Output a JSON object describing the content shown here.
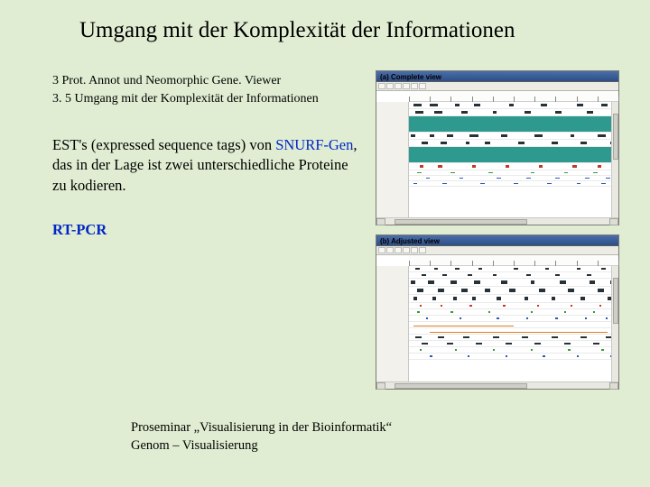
{
  "colors": {
    "slide_bg": "#e0edd2",
    "link_blue": "#0026c7",
    "window_titlebar": "#2d4f88",
    "panel_bg": "#ffffff",
    "panel_border": "#7a7a7a",
    "track_teal": "#2e9a8f",
    "track_dark": "#263238",
    "track_red": "#c03a2a",
    "track_blue": "#2d58b5",
    "track_orange": "#d9831f",
    "track_green": "#3a9b3a",
    "grid": "#eaeaea"
  },
  "title": "Umgang mit der Komplexität der Informationen",
  "meta": {
    "line1": "3 Prot. Annot und Neomorphic Gene. Viewer",
    "line2": "3. 5 Umgang mit der Komplexität der Informationen"
  },
  "body": {
    "line1": " EST's (expressed sequence tags) von ",
    "snurf": "SNURF-Gen",
    "line2_rest": ", das in der Lage ist zwei unterschiedliche Proteine zu kodieren.",
    "rtpcr": "RT-PCR"
  },
  "footer": {
    "line1": "Proseminar „Visualisierung in der Bioinformatik“",
    "line2": "Genom – Visualisierung"
  },
  "figure": {
    "panel_a_label": "(a) Complete view",
    "panel_b_label": "(b) Adjusted view",
    "ruler": {
      "start": 0,
      "end": 100,
      "tick_step": 10
    },
    "panel_a": {
      "tracks": [
        {
          "h": 8,
          "color": "#263238",
          "segments": [
            [
              2,
              6
            ],
            [
              10,
              14
            ],
            [
              22,
              24
            ],
            [
              31,
              34
            ],
            [
              48,
              50
            ],
            [
              63,
              66
            ],
            [
              80,
              83
            ],
            [
              92,
              95
            ]
          ]
        },
        {
          "h": 8,
          "color": "#263238",
          "segments": [
            [
              3,
              7
            ],
            [
              12,
              16
            ],
            [
              25,
              28
            ],
            [
              40,
              42
            ],
            [
              55,
              58
            ],
            [
              70,
              73
            ],
            [
              85,
              88
            ]
          ]
        },
        {
          "h": 18,
          "color": "#2e9a8f",
          "segments": [
            [
              0,
              100
            ]
          ],
          "full": true
        },
        {
          "h": 8,
          "color": "#263238",
          "segments": [
            [
              1,
              3
            ],
            [
              10,
              12
            ],
            [
              18,
              21
            ],
            [
              29,
              33
            ],
            [
              44,
              47
            ],
            [
              60,
              64
            ],
            [
              77,
              79
            ],
            [
              90,
              94
            ]
          ]
        },
        {
          "h": 8,
          "color": "#263238",
          "segments": [
            [
              6,
              9
            ],
            [
              15,
              18
            ],
            [
              27,
              29
            ],
            [
              36,
              39
            ],
            [
              52,
              55
            ],
            [
              68,
              71
            ],
            [
              82,
              85
            ],
            [
              96,
              99
            ]
          ]
        },
        {
          "h": 18,
          "color": "#2e9a8f",
          "segments": [
            [
              0,
              100
            ]
          ],
          "full": true
        },
        {
          "h": 8,
          "color": "#c03a2a",
          "segments": [
            [
              5,
              7
            ],
            [
              14,
              16
            ],
            [
              30,
              32
            ],
            [
              46,
              48
            ],
            [
              62,
              64
            ],
            [
              78,
              80
            ],
            [
              90,
              92
            ]
          ]
        },
        {
          "h": 6,
          "color": "#3a9b3a",
          "segments": [
            [
              4,
              6
            ],
            [
              20,
              22
            ],
            [
              38,
              40
            ],
            [
              58,
              60
            ],
            [
              74,
              76
            ],
            [
              88,
              90
            ]
          ]
        },
        {
          "h": 6,
          "color": "#2d58b5",
          "segments": [
            [
              8,
              10
            ],
            [
              24,
              26
            ],
            [
              42,
              44
            ],
            [
              56,
              58
            ],
            [
              70,
              72
            ],
            [
              84,
              86
            ],
            [
              94,
              96
            ]
          ]
        },
        {
          "h": 6,
          "color": "#2d58b5",
          "segments": [
            [
              2,
              4
            ],
            [
              16,
              18
            ],
            [
              34,
              36
            ],
            [
              50,
              52
            ],
            [
              66,
              68
            ],
            [
              80,
              82
            ],
            [
              92,
              94
            ]
          ]
        }
      ]
    },
    "panel_b": {
      "tracks": [
        {
          "h": 7,
          "color": "#263238",
          "segments": [
            [
              3,
              5
            ],
            [
              12,
              14
            ],
            [
              22,
              24
            ],
            [
              33,
              35
            ],
            [
              50,
              52
            ],
            [
              65,
              67
            ],
            [
              80,
              82
            ],
            [
              92,
              94
            ]
          ]
        },
        {
          "h": 7,
          "color": "#263238",
          "segments": [
            [
              6,
              8
            ],
            [
              16,
              18
            ],
            [
              28,
              30
            ],
            [
              40,
              42
            ],
            [
              56,
              58
            ],
            [
              70,
              72
            ],
            [
              85,
              87
            ]
          ]
        },
        {
          "h": 9,
          "color": "#263238",
          "segments": [
            [
              1,
              3
            ],
            [
              9,
              12
            ],
            [
              20,
              23
            ],
            [
              31,
              34
            ],
            [
              44,
              47
            ],
            [
              58,
              60
            ],
            [
              72,
              75
            ],
            [
              86,
              89
            ],
            [
              96,
              99
            ]
          ]
        },
        {
          "h": 9,
          "color": "#263238",
          "segments": [
            [
              4,
              7
            ],
            [
              14,
              17
            ],
            [
              25,
              28
            ],
            [
              36,
              39
            ],
            [
              48,
              51
            ],
            [
              62,
              65
            ],
            [
              76,
              79
            ],
            [
              90,
              93
            ]
          ]
        },
        {
          "h": 9,
          "color": "#263238",
          "segments": [
            [
              2,
              4
            ],
            [
              11,
              13
            ],
            [
              21,
              23
            ],
            [
              30,
              32
            ],
            [
              42,
              44
            ],
            [
              55,
              57
            ],
            [
              68,
              70
            ],
            [
              82,
              84
            ],
            [
              95,
              97
            ]
          ]
        },
        {
          "h": 7,
          "color": "#c03a2a",
          "segments": [
            [
              5,
              6
            ],
            [
              15,
              16
            ],
            [
              29,
              30
            ],
            [
              45,
              46
            ],
            [
              61,
              62
            ],
            [
              77,
              78
            ],
            [
              91,
              92
            ]
          ]
        },
        {
          "h": 7,
          "color": "#3a9b3a",
          "segments": [
            [
              4,
              5
            ],
            [
              20,
              21
            ],
            [
              38,
              39
            ],
            [
              58,
              59
            ],
            [
              74,
              75
            ],
            [
              88,
              89
            ]
          ]
        },
        {
          "h": 7,
          "color": "#2d58b5",
          "segments": [
            [
              8,
              9
            ],
            [
              24,
              25
            ],
            [
              42,
              43
            ],
            [
              56,
              57
            ],
            [
              70,
              71
            ],
            [
              84,
              85
            ],
            [
              94,
              95
            ]
          ]
        },
        {
          "h": 7,
          "color": "#d9831f",
          "segments": [
            [
              2,
              50
            ]
          ],
          "thinline": true
        },
        {
          "h": 7,
          "color": "#d9831f",
          "segments": [
            [
              10,
              95
            ]
          ],
          "thinline": true
        },
        {
          "h": 7,
          "color": "#263238",
          "segments": [
            [
              3,
              6
            ],
            [
              14,
              17
            ],
            [
              26,
              29
            ],
            [
              40,
              43
            ],
            [
              54,
              57
            ],
            [
              68,
              71
            ],
            [
              82,
              85
            ],
            [
              94,
              97
            ]
          ]
        },
        {
          "h": 7,
          "color": "#263238",
          "segments": [
            [
              6,
              9
            ],
            [
              18,
              21
            ],
            [
              32,
              35
            ],
            [
              46,
              49
            ],
            [
              60,
              63
            ],
            [
              74,
              77
            ],
            [
              88,
              91
            ]
          ]
        },
        {
          "h": 7,
          "color": "#3a9b3a",
          "segments": [
            [
              5,
              6
            ],
            [
              22,
              23
            ],
            [
              40,
              41
            ],
            [
              58,
              59
            ],
            [
              76,
              77
            ],
            [
              92,
              93
            ]
          ]
        },
        {
          "h": 7,
          "color": "#2d58b5",
          "segments": [
            [
              10,
              11
            ],
            [
              28,
              29
            ],
            [
              46,
              47
            ],
            [
              64,
              65
            ],
            [
              80,
              81
            ],
            [
              96,
              97
            ]
          ]
        }
      ]
    },
    "scrollbar": {
      "thumb_left_pct": 10,
      "thumb_width_pct": 55
    },
    "vscroll": {
      "thumb_top_pct": 10,
      "thumb_height_pct": 40
    }
  }
}
